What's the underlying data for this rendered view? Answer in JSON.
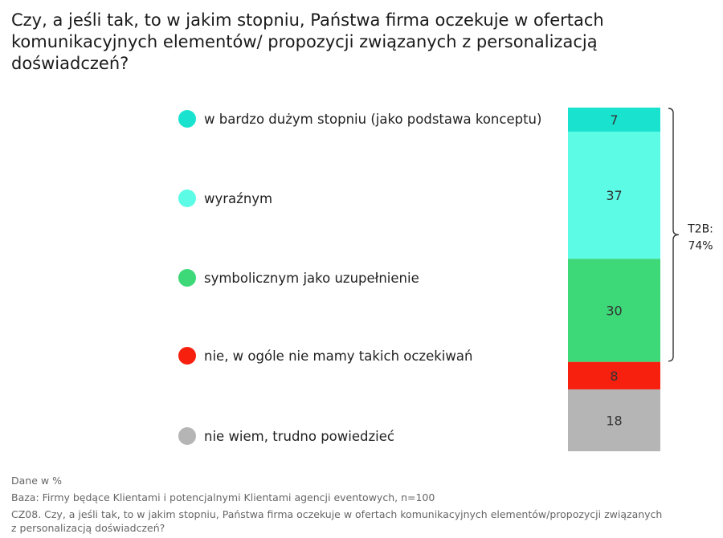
{
  "title": "Czy, a jeśli tak, to w jakim stopniu, Państwa firma oczekuje w ofertach\nkomunikacyjnych elementów/ propozycji związanych z personalizacją\ndoświadczeń?",
  "chart_data": {
    "type": "bar",
    "stacked": true,
    "orientation": "vertical",
    "unit": "%",
    "series": [
      {
        "name": "w bardzo dużym stopniu (jako podstawa konceptu)",
        "value": 7,
        "color": "#19e3cf"
      },
      {
        "name": "wyraźnym",
        "value": 37,
        "color": "#5cfbe6"
      },
      {
        "name": "symbolicznym jako uzupełnienie",
        "value": 30,
        "color": "#3dd878"
      },
      {
        "name": "nie, w ogóle nie mamy takich oczekiwań",
        "value": 8,
        "color": "#f7200f"
      },
      {
        "name": "nie wiem, trudno powiedzieć",
        "value": 18,
        "color": "#b5b5b5"
      }
    ],
    "annotation": {
      "label_line1": "T2B:",
      "label_line2": "74%",
      "spans": [
        0,
        2
      ]
    }
  },
  "footer": {
    "line1": "Dane w %",
    "line2": "Baza: Firmy będące Klientami i potencjalnymi Klientami agencji eventowych, n=100",
    "line3": "CZ08. Czy, a jeśli tak, to w jakim stopniu, Państwa firma oczekuje w ofertach komunikacyjnych elementów/propozycji związanych",
    "line4": "z personalizacją doświadczeń?"
  }
}
